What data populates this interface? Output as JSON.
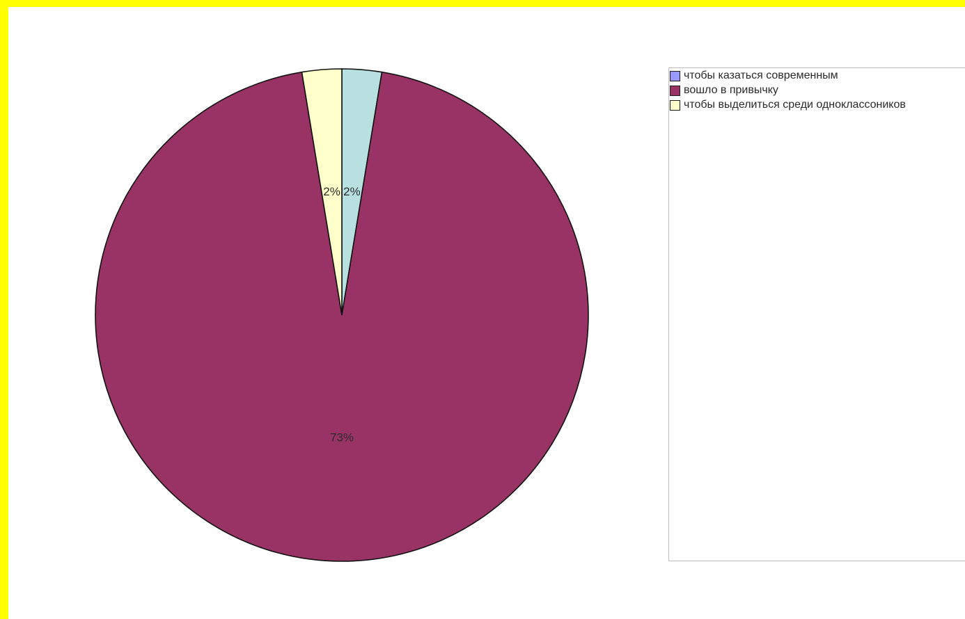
{
  "chart_data": {
    "type": "pie",
    "title": "",
    "series": [
      {
        "name": "",
        "slices": [
          {
            "label": "",
            "value": 2,
            "display": "2%",
            "color": "#b9e0e0"
          },
          {
            "label": "вошло в привычку",
            "value": 73,
            "display": "73%",
            "color": "#993366"
          },
          {
            "label": "чтобы выделиться среди одноклассоников",
            "value": 2,
            "display": "2%",
            "color": "#ffffcc"
          }
        ]
      }
    ],
    "legend": {
      "placement": "right",
      "entries": [
        {
          "label": "чтобы казаться современным",
          "color": "#9999ff"
        },
        {
          "label": "вошло в привычку",
          "color": "#993366"
        },
        {
          "label": "чтобы выделиться среди одноклассоников",
          "color": "#ffffcc"
        }
      ]
    }
  },
  "frame": {
    "border_color": "#ffff00",
    "background": "#ffffff"
  }
}
